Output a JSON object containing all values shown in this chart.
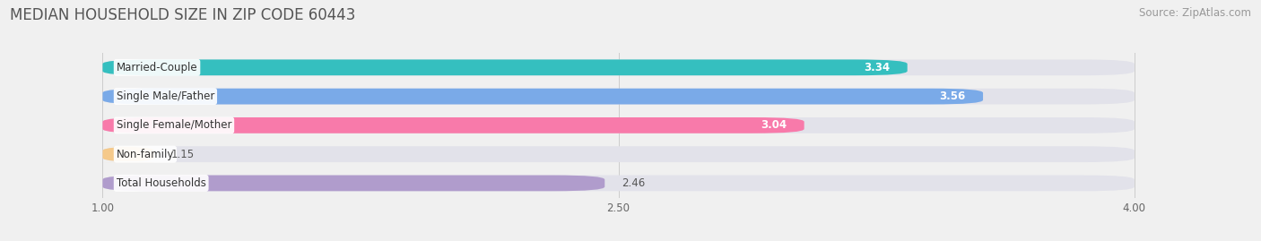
{
  "title": "MEDIAN HOUSEHOLD SIZE IN ZIP CODE 60443",
  "source": "Source: ZipAtlas.com",
  "categories": [
    "Married-Couple",
    "Single Male/Father",
    "Single Female/Mother",
    "Non-family",
    "Total Households"
  ],
  "values": [
    3.34,
    3.56,
    3.04,
    1.15,
    2.46
  ],
  "bar_colors": [
    "#35bfbf",
    "#7aaae8",
    "#f87aaa",
    "#f5c98a",
    "#b09ccc"
  ],
  "label_colors": [
    "white",
    "white",
    "white",
    "#555555",
    "#555555"
  ],
  "xmin": 1.0,
  "xmax": 4.0,
  "xlim_left": 0.72,
  "xlim_right": 4.35,
  "xticks": [
    1.0,
    2.5,
    4.0
  ],
  "xtick_labels": [
    "1.00",
    "2.50",
    "4.00"
  ],
  "bg_color": "#f0f0f0",
  "bar_bg_color": "#e2e2ea",
  "title_fontsize": 12,
  "source_fontsize": 8.5,
  "bar_height": 0.55,
  "value_fontsize": 8.5,
  "cat_fontsize": 8.5
}
